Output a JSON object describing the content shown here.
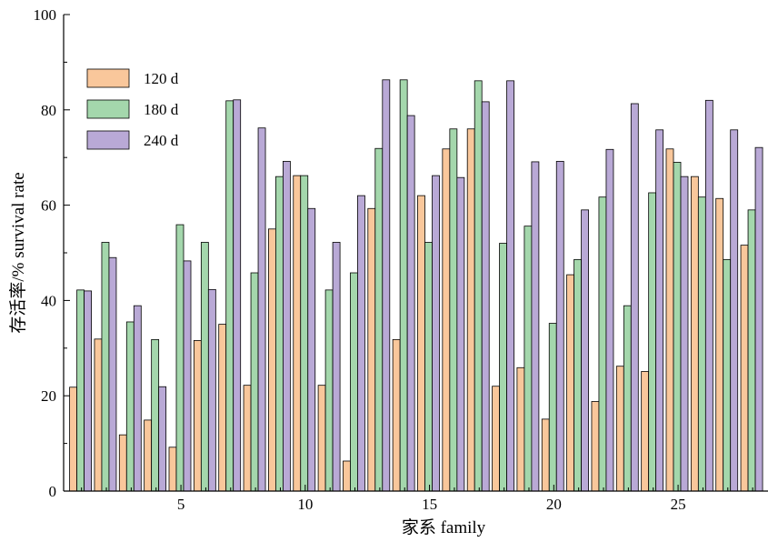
{
  "chart_data": {
    "type": "bar",
    "xlabel": "家系 family",
    "ylabel": "存活率/% survival rate",
    "ylim": [
      0,
      100
    ],
    "y_ticks": [
      0,
      20,
      40,
      60,
      80,
      100
    ],
    "x_ticks": [
      5,
      10,
      15,
      20,
      25
    ],
    "legend_position": "top-left",
    "grid": false,
    "categories": [
      1,
      2,
      3,
      4,
      5,
      6,
      7,
      8,
      9,
      10,
      11,
      12,
      13,
      14,
      15,
      16,
      17,
      18,
      19,
      20,
      21,
      22,
      23,
      24,
      25,
      26,
      27,
      28
    ],
    "series": [
      {
        "name": "120 d",
        "color": "#f9c79b",
        "values": [
          21.8,
          31.9,
          11.8,
          14.9,
          9.2,
          31.6,
          35.0,
          22.2,
          55.0,
          66.2,
          22.2,
          6.3,
          59.3,
          31.8,
          62.0,
          71.8,
          76.0,
          22.0,
          25.9,
          15.1,
          45.4,
          18.8,
          26.2,
          25.1,
          71.8,
          66.0,
          61.4,
          51.6
        ]
      },
      {
        "name": "180 d",
        "color": "#a4d7ac",
        "values": [
          42.2,
          52.2,
          35.5,
          31.8,
          55.9,
          52.2,
          81.9,
          45.8,
          66.0,
          66.2,
          42.2,
          45.8,
          71.9,
          86.3,
          52.2,
          76.0,
          86.1,
          52.0,
          55.6,
          35.2,
          48.6,
          61.7,
          38.9,
          62.6,
          69.0,
          61.7,
          48.6,
          59.0
        ]
      },
      {
        "name": "240 d",
        "color": "#b9a9d6",
        "values": [
          42.0,
          49.0,
          38.9,
          21.9,
          48.3,
          42.3,
          82.1,
          76.2,
          69.2,
          59.3,
          52.2,
          62.0,
          86.3,
          78.8,
          66.2,
          65.8,
          81.7,
          86.1,
          69.1,
          69.2,
          59.0,
          71.7,
          81.3,
          75.8,
          66.0,
          82.0,
          75.8,
          72.1
        ]
      }
    ]
  }
}
